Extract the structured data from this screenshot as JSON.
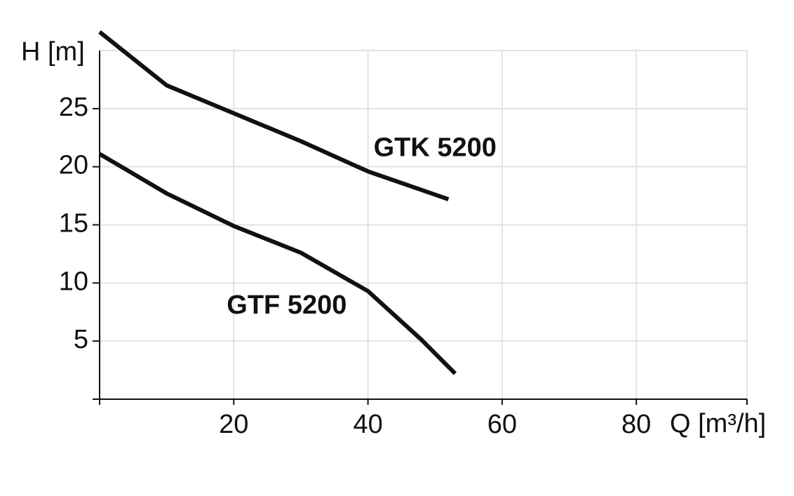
{
  "chart_data": {
    "type": "line",
    "x_label": "Q [m³/h]",
    "y_label": "H [m]",
    "xlim": [
      0,
      96.5
    ],
    "ylim": [
      0,
      30
    ],
    "xticks": [
      20,
      40,
      60,
      80
    ],
    "yticks": [
      5,
      10,
      15,
      20,
      25
    ],
    "grid": true,
    "series": [
      {
        "name": "GTK 5200",
        "color": "#111111",
        "x": [
          0,
          10,
          20,
          30,
          40,
          52
        ],
        "values": [
          31.6,
          27.0,
          24.6,
          22.2,
          19.6,
          17.2
        ]
      },
      {
        "name": "GTF 5200",
        "color": "#111111",
        "x": [
          0,
          10,
          20,
          30,
          40,
          48,
          53
        ],
        "values": [
          21.1,
          17.7,
          14.9,
          12.6,
          9.3,
          5.1,
          2.2
        ]
      }
    ]
  }
}
